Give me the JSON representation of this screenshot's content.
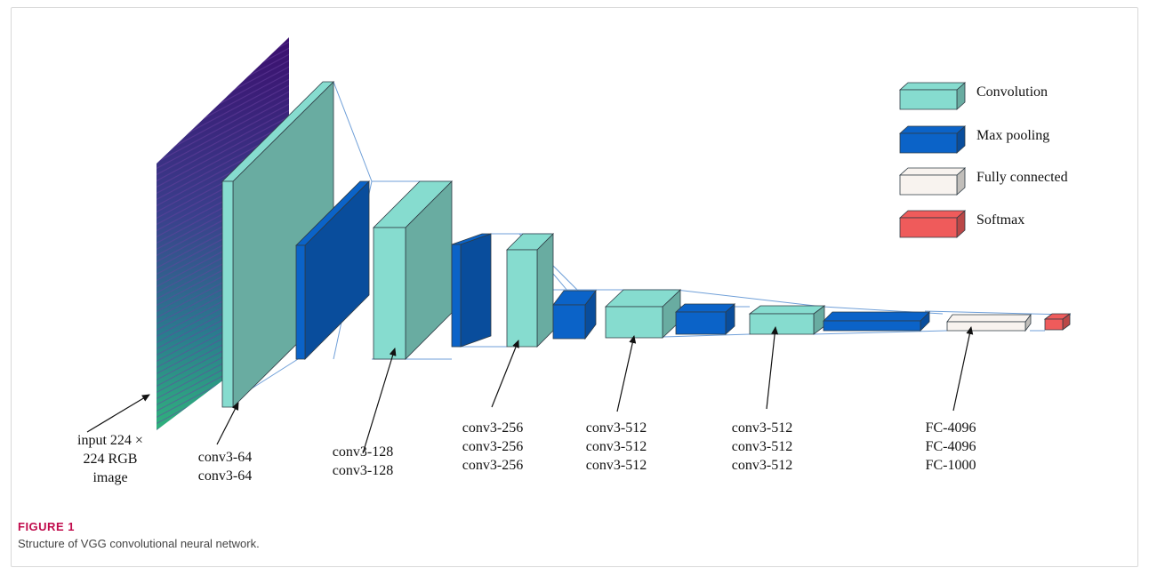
{
  "colors": {
    "convolution": "#86dccf",
    "max_pooling": "#0b63c8",
    "fully_connected": "#f8f3ef",
    "softmax": "#ef5b5b",
    "connector": "#6f9fd8",
    "arrow": "#111111",
    "figure_label": "#c00a4b"
  },
  "legend": [
    {
      "type": "convolution",
      "label": "Convolution"
    },
    {
      "type": "max_pooling",
      "label": "Max pooling"
    },
    {
      "type": "fully_connected",
      "label": "Fully connected"
    },
    {
      "type": "softmax",
      "label": "Softmax"
    }
  ],
  "stage_labels": {
    "input": [
      "input 224 ×",
      "224 RGB",
      "image"
    ],
    "block1": [
      "conv3-64",
      "conv3-64"
    ],
    "block2": [
      "conv3-128",
      "conv3-128"
    ],
    "block3": [
      "conv3-256",
      "conv3-256",
      "conv3-256"
    ],
    "block4": [
      "conv3-512",
      "conv3-512",
      "conv3-512"
    ],
    "block5": [
      "conv3-512",
      "conv3-512",
      "conv3-512"
    ],
    "fc": [
      "FC-4096",
      "FC-4096",
      "FC-1000"
    ]
  },
  "figure": {
    "label": "FIGURE 1",
    "caption": "Structure of VGG convolutional neural network."
  }
}
